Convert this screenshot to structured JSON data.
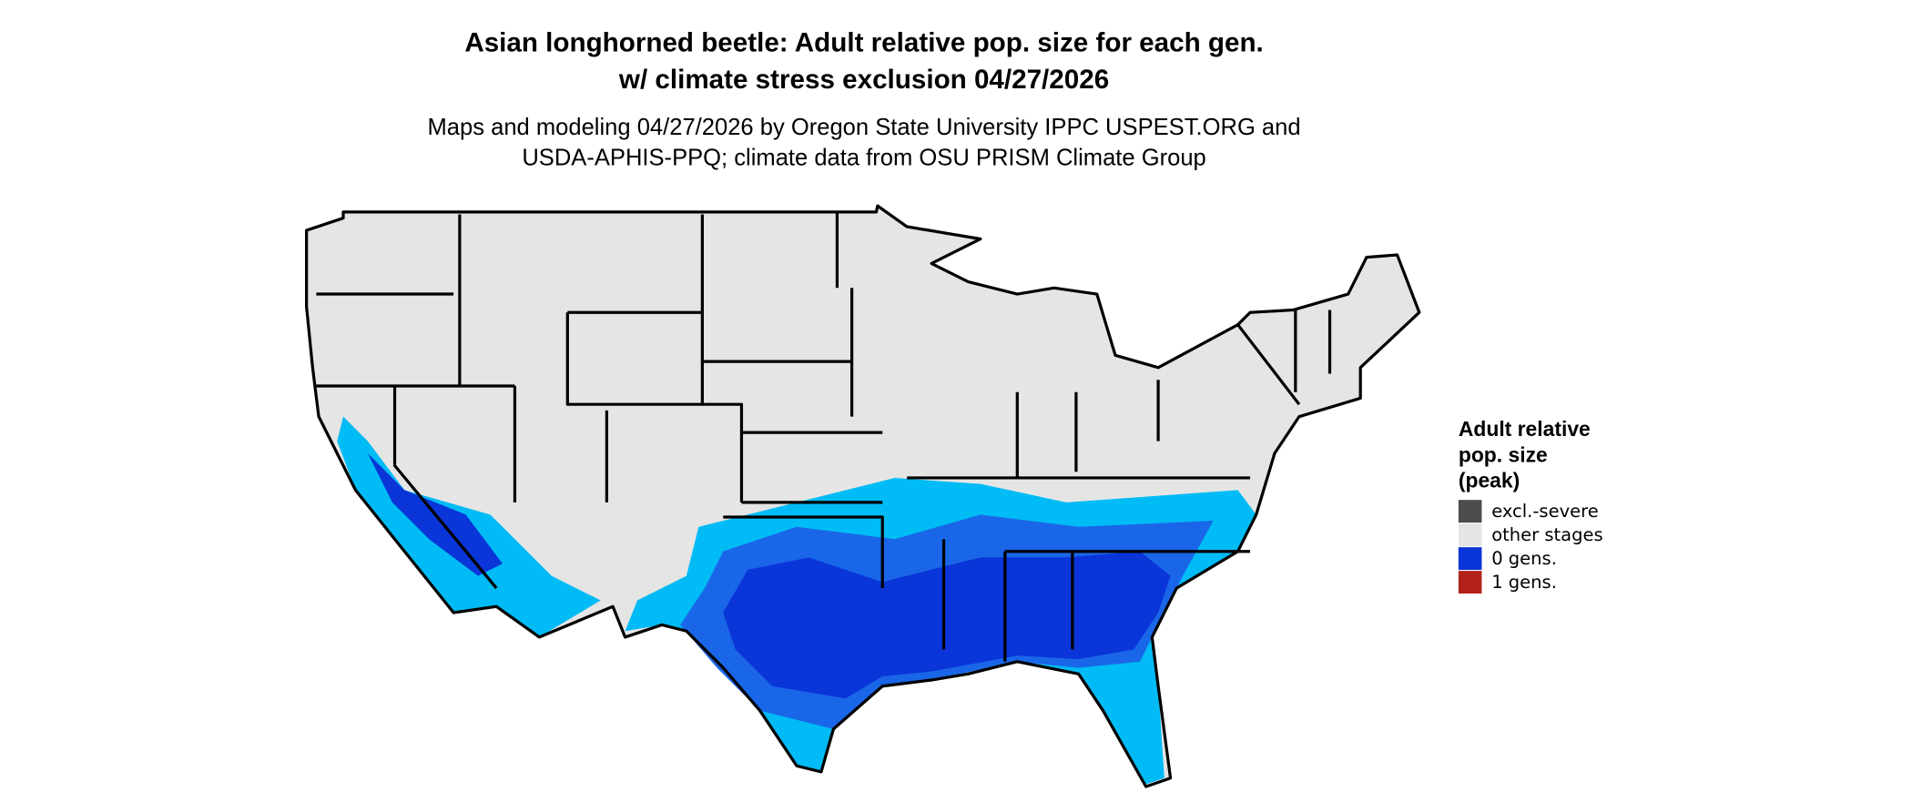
{
  "header": {
    "title": [
      "Asian longhorned beetle: Adult relative pop. size for each gen.",
      "w/ climate stress exclusion 04/27/2026"
    ],
    "subtitle": [
      "Maps and modeling 04/27/2026 by Oregon State University IPPC USPEST.ORG and",
      "USDA-APHIS-PPQ; climate data from OSU PRISM Climate Group"
    ]
  },
  "legend": {
    "title": [
      "Adult relative",
      "pop. size",
      "(peak)"
    ],
    "items": [
      {
        "label": "excl.-severe",
        "color": "#4d4d4d"
      },
      {
        "label": "other stages",
        "color": "#e5e5e5"
      },
      {
        "label": "0 gens.",
        "color": "#0a35d8"
      },
      {
        "label": "1 gens.",
        "color": "#b2221a"
      }
    ]
  }
}
